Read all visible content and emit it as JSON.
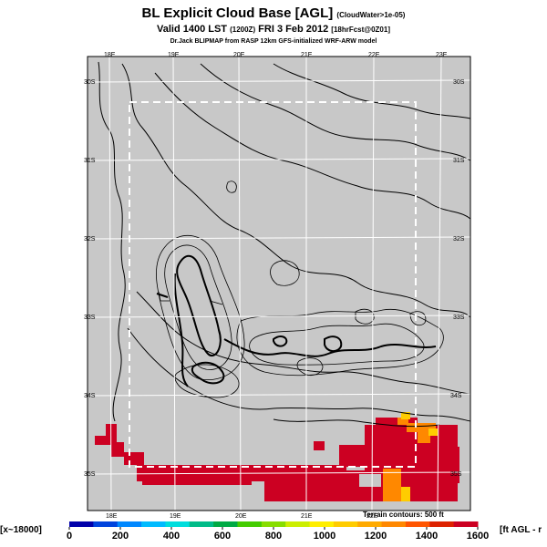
{
  "title": {
    "main": "BL Explicit Cloud Base [AGL]",
    "suffix": "(CloudWater>1e-05)"
  },
  "subtitle": {
    "valid": "Valid 1400 LST",
    "code": "(1200Z)",
    "date": "FRI 3 Feb 2012",
    "forecast": "[18hrFcst@0Z01]"
  },
  "credit": "Dr.Jack BLIPMAP from RASP 12km GFS-initialized WRF-ARW model",
  "map": {
    "lon_labels_top": [
      "18E",
      "19E",
      "20E",
      "21E",
      "22E",
      "23E"
    ],
    "lon_labels_bottom": [
      "18E",
      "19E",
      "20E",
      "21E",
      "22E"
    ],
    "lat_labels_left": [
      "30S",
      "31S",
      "32S",
      "33S",
      "34S",
      "35S"
    ],
    "lat_labels_right": [
      "30S",
      "31S",
      "32S",
      "33S",
      "34S",
      "35S"
    ],
    "terrain_note": "Terrain contours: 500 ft",
    "colors": {
      "background": "#c8c8c8",
      "cloud_red": "#cc0022",
      "cloud_orange": "#ff8800",
      "cloud_yellow": "#ffcc00",
      "grid": "#ffffff"
    }
  },
  "legend": {
    "left_label": "[x~18000]",
    "right_label": "[ft AGL - r",
    "ticks": [
      "0",
      "200",
      "400",
      "600",
      "800",
      "1000",
      "1200",
      "1400",
      "1600"
    ],
    "colors": [
      "#0000aa",
      "#0044dd",
      "#0088ff",
      "#00bbff",
      "#00dddd",
      "#00bb88",
      "#00aa44",
      "#44cc00",
      "#88dd00",
      "#ccee00",
      "#ffee00",
      "#ffcc00",
      "#ffaa00",
      "#ff8800",
      "#ff5500",
      "#dd2200",
      "#cc0022"
    ]
  }
}
